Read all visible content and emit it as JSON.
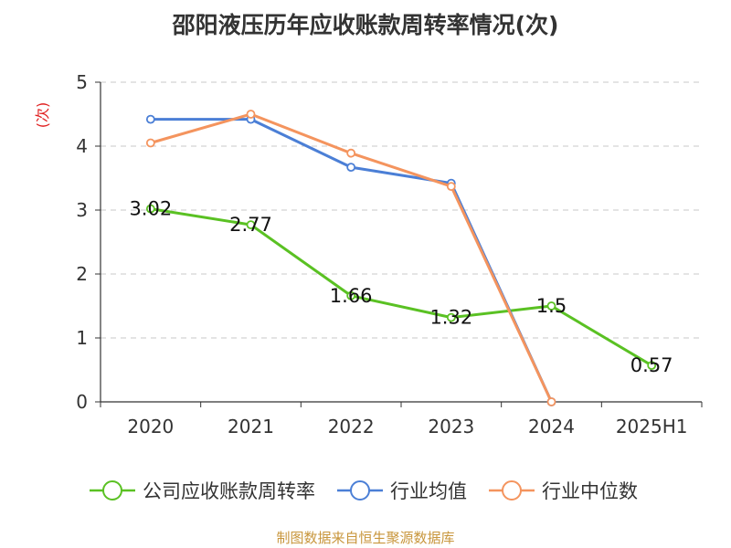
{
  "chart_data": {
    "type": "line",
    "title": "邵阳液压历年应收账款周转率情况(次)",
    "ylabel": "(次)",
    "categories": [
      "2020",
      "2021",
      "2022",
      "2023",
      "2024",
      "2025H1"
    ],
    "ylim": [
      0,
      5
    ],
    "yticks": [
      "0",
      "1",
      "2",
      "3",
      "4",
      "5"
    ],
    "grid": true,
    "legend_position": "bottom",
    "series": [
      {
        "name": "公司应收账款周转率",
        "color": "#5ac123",
        "values": [
          3.02,
          2.77,
          1.66,
          1.32,
          1.5,
          0.57
        ],
        "labels": [
          "3.02",
          "2.77",
          "1.66",
          "1.32",
          "1.5",
          "0.57"
        ]
      },
      {
        "name": "行业均值",
        "color": "#4b7fd6",
        "values": [
          4.42,
          4.42,
          3.67,
          3.42,
          0,
          null
        ]
      },
      {
        "name": "行业中位数",
        "color": "#f4945e",
        "values": [
          4.05,
          4.5,
          3.89,
          3.37,
          0,
          null
        ]
      }
    ],
    "source": "制图数据来自恒生聚源数据库"
  }
}
